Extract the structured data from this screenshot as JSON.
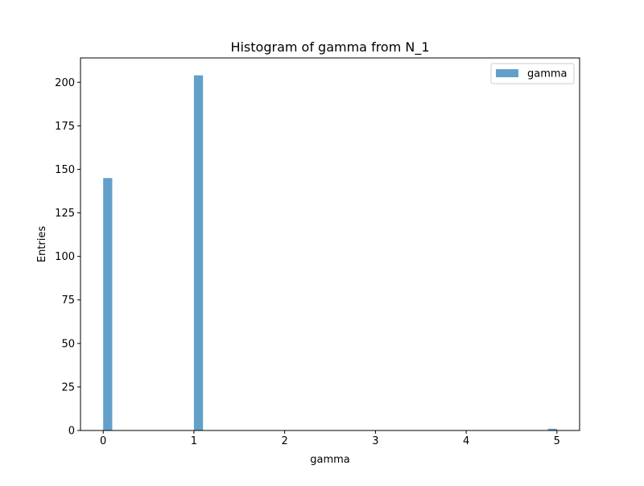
{
  "chart_data": {
    "type": "bar",
    "title": "Histogram of gamma from N_1",
    "xlabel": "gamma",
    "ylabel": "Entries",
    "xlim": [
      -0.25,
      5.25
    ],
    "ylim": [
      0,
      214
    ],
    "xticks": [
      0,
      1,
      2,
      3,
      4,
      5
    ],
    "yticks": [
      0,
      25,
      50,
      75,
      100,
      125,
      150,
      175,
      200
    ],
    "grid": false,
    "legend": {
      "placement": "top-right",
      "entries": [
        "gamma"
      ]
    },
    "series": [
      {
        "name": "gamma",
        "color": "#1f77b4",
        "opacity": 0.7,
        "bins": [
          {
            "x0": 0.0,
            "x1": 0.1,
            "value": 145
          },
          {
            "x0": 1.0,
            "x1": 1.1,
            "value": 204
          },
          {
            "x0": 4.9,
            "x1": 5.0,
            "value": 1
          }
        ]
      }
    ]
  }
}
